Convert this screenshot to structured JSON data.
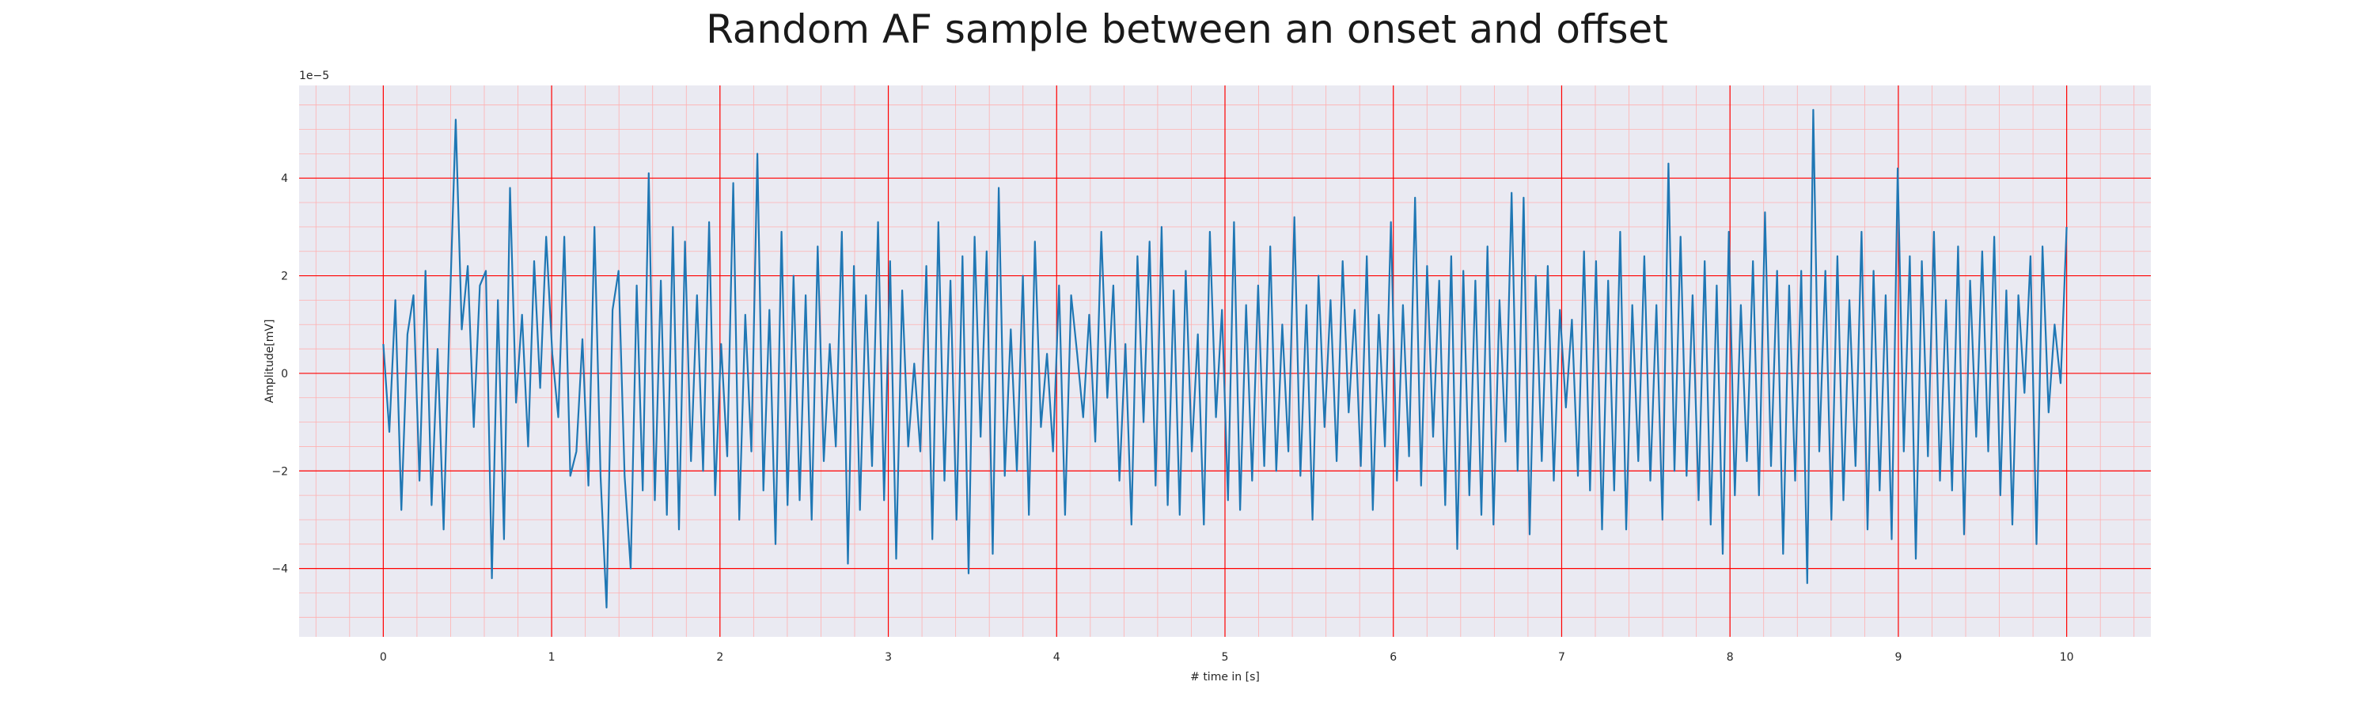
{
  "chart_data": {
    "type": "line",
    "title": "Random AF sample between an onset and offset",
    "xlabel": "# time in [s]",
    "ylabel": "Amplitude[mV]",
    "y_scale_label": "1e−5",
    "xlim": [
      -0.5,
      10.5
    ],
    "ylim": [
      -5.4,
      5.9
    ],
    "x_ticks": [
      0,
      1,
      2,
      3,
      4,
      5,
      6,
      7,
      8,
      9,
      10
    ],
    "x_tick_labels": [
      "0",
      "1",
      "2",
      "3",
      "4",
      "5",
      "6",
      "7",
      "8",
      "9",
      "10"
    ],
    "y_ticks": [
      -4,
      -2,
      0,
      2,
      4
    ],
    "y_tick_labels": [
      "−4",
      "−2",
      "0",
      "2",
      "4"
    ],
    "grid": true,
    "colors": {
      "plot_background": "#eaeaf2",
      "major_grid": "#ff0000",
      "minor_grid": "#ffb0b0",
      "line": "#1f77b4"
    },
    "series": [
      {
        "x_start": 0,
        "x_end": 10,
        "values": [
          0.6,
          -1.2,
          1.5,
          -2.8,
          0.8,
          1.6,
          -2.2,
          2.1,
          -2.7,
          0.5,
          -3.2,
          1.2,
          5.2,
          0.9,
          2.2,
          -1.1,
          1.8,
          2.1,
          -4.2,
          1.5,
          -3.4,
          3.8,
          -0.6,
          1.2,
          -1.5,
          2.3,
          -0.3,
          2.8,
          0.4,
          -0.9,
          2.8,
          -2.1,
          -1.6,
          0.7,
          -2.3,
          3.0,
          -2.1,
          -4.8,
          1.3,
          2.1,
          -2.1,
          -4.0,
          1.8,
          -2.4,
          4.1,
          -2.6,
          1.9,
          -2.9,
          3.0,
          -3.2,
          2.7,
          -1.8,
          1.6,
          -2.0,
          3.1,
          -2.5,
          0.6,
          -1.7,
          3.9,
          -3.0,
          1.2,
          -1.6,
          4.5,
          -2.4,
          1.3,
          -3.5,
          2.9,
          -2.7,
          2.0,
          -2.6,
          1.6,
          -3.0,
          2.6,
          -1.8,
          0.6,
          -1.5,
          2.9,
          -3.9,
          2.2,
          -2.8,
          1.6,
          -1.9,
          3.1,
          -2.6,
          2.3,
          -3.8,
          1.7,
          -1.5,
          0.2,
          -1.6,
          2.2,
          -3.4,
          3.1,
          -2.2,
          1.9,
          -3.0,
          2.4,
          -4.1,
          2.8,
          -1.3,
          2.5,
          -3.7,
          3.8,
          -2.1,
          0.9,
          -2.0,
          2.0,
          -2.9,
          2.7,
          -1.1,
          0.4,
          -1.6,
          1.8,
          -2.9,
          1.6,
          0.4,
          -0.9,
          1.2,
          -1.4,
          2.9,
          -0.5,
          1.8,
          -2.2,
          0.6,
          -3.1,
          2.4,
          -1.0,
          2.7,
          -2.3,
          3.0,
          -2.7,
          1.7,
          -2.9,
          2.1,
          -1.6,
          0.8,
          -3.1,
          2.9,
          -0.9,
          1.3,
          -2.6,
          3.1,
          -2.8,
          1.4,
          -2.2,
          1.8,
          -1.9,
          2.6,
          -2.0,
          1.0,
          -1.6,
          3.2,
          -2.1,
          1.4,
          -3.0,
          2.0,
          -1.1,
          1.5,
          -1.8,
          2.3,
          -0.8,
          1.3,
          -1.9,
          2.4,
          -2.8,
          1.2,
          -1.5,
          3.1,
          -2.2,
          1.4,
          -1.7,
          3.6,
          -2.3,
          2.2,
          -1.3,
          1.9,
          -2.7,
          2.4,
          -3.6,
          2.1,
          -2.5,
          1.9,
          -2.9,
          2.6,
          -3.1,
          1.5,
          -1.4,
          3.7,
          -2.0,
          3.6,
          -3.3,
          2.0,
          -1.8,
          2.2,
          -2.2,
          1.3,
          -0.7,
          1.1,
          -2.1,
          2.5,
          -2.4,
          2.3,
          -3.2,
          1.9,
          -2.4,
          2.9,
          -3.2,
          1.4,
          -1.8,
          2.4,
          -2.2,
          1.4,
          -3.0,
          4.3,
          -2.0,
          2.8,
          -2.1,
          1.6,
          -2.6,
          2.3,
          -3.1,
          1.8,
          -3.7,
          2.9,
          -2.5,
          1.4,
          -1.8,
          2.3,
          -2.5,
          3.3,
          -1.9,
          2.1,
          -3.7,
          1.8,
          -2.2,
          2.1,
          -4.3,
          5.4,
          -1.6,
          2.1,
          -3.0,
          2.4,
          -2.6,
          1.5,
          -1.9,
          2.9,
          -3.2,
          2.1,
          -2.4,
          1.6,
          -3.4,
          4.2,
          -1.6,
          2.4,
          -3.8,
          2.3,
          -1.7,
          2.9,
          -2.2,
          1.5,
          -2.4,
          2.6,
          -3.3,
          1.9,
          -1.3,
          2.5,
          -1.6,
          2.8,
          -2.5,
          1.7,
          -3.1,
          1.6,
          -0.4,
          2.4,
          -3.5,
          2.6,
          -0.8,
          1.0,
          -0.2,
          3.0
        ]
      }
    ]
  }
}
